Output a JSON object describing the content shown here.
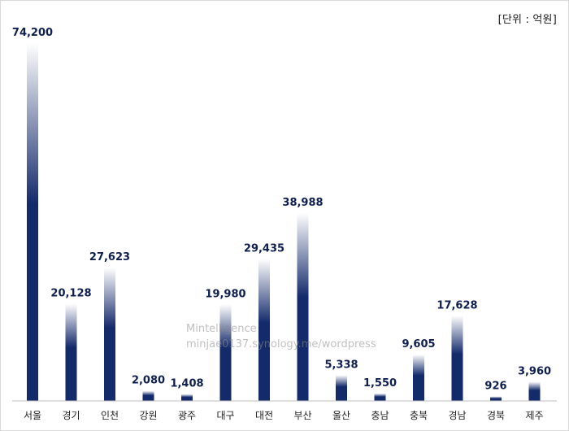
{
  "unit_label": "[단위 : 억원]",
  "watermark": {
    "line1": "Mintelligence",
    "line2": "minjae0137.synology.me/wordpress"
  },
  "colors": {
    "bar_dark": "#132a6b",
    "bar_light": "#ffffff",
    "axis": "#bfbfbf",
    "value_text": "#0f1f4f"
  },
  "chart_data": {
    "type": "bar",
    "categories": [
      "서울",
      "경기",
      "인천",
      "강원",
      "광주",
      "대구",
      "대전",
      "부산",
      "울산",
      "충남",
      "충북",
      "경남",
      "경북",
      "제주"
    ],
    "values": [
      74200,
      20128,
      27623,
      2080,
      1408,
      19980,
      29435,
      38988,
      5338,
      1550,
      9605,
      17628,
      926,
      3960
    ],
    "value_labels": [
      "74,200",
      "20,128",
      "27,623",
      "2,080",
      "1,408",
      "19,980",
      "29,435",
      "38,988",
      "5,338",
      "1,550",
      "9,605",
      "17,628",
      "926",
      "3,960"
    ],
    "title": "",
    "xlabel": "",
    "ylabel": "",
    "ylim": [
      0,
      74200
    ],
    "grid": false,
    "legend": "none"
  }
}
